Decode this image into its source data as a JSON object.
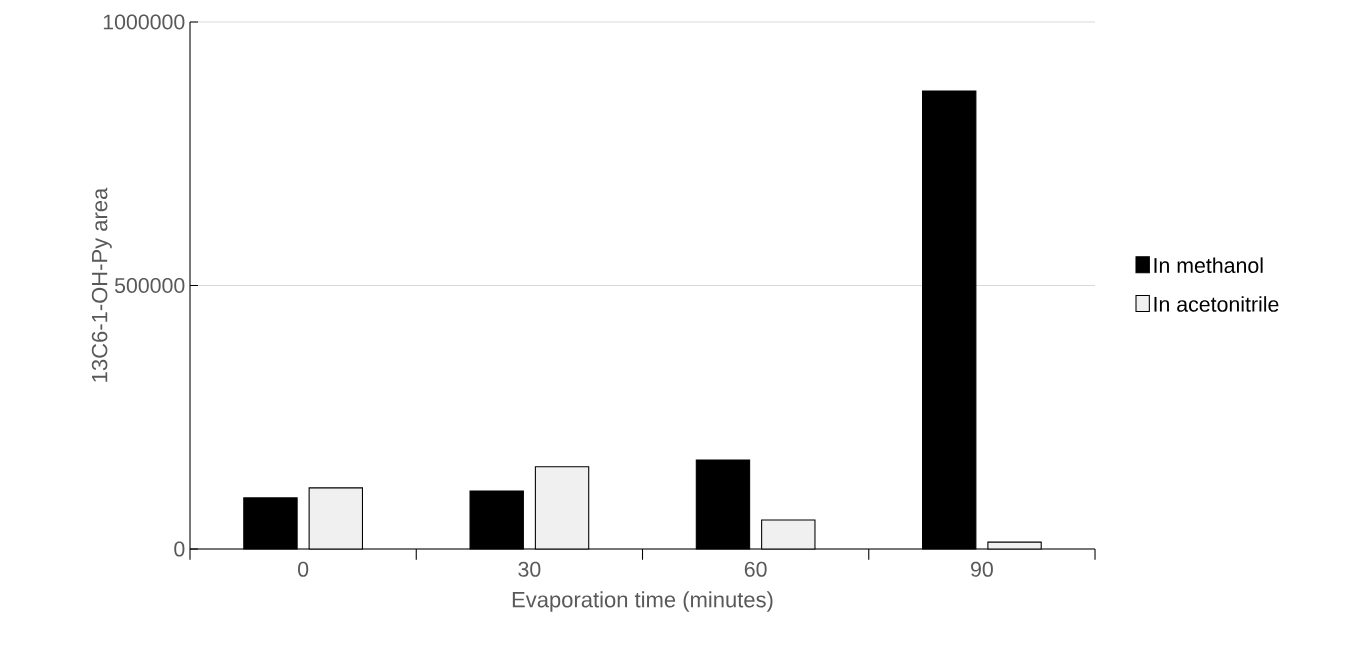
{
  "chart_data": {
    "type": "bar",
    "xlabel": "Evaporation time (minutes)",
    "ylabel": "13C6-1-OH-Py area",
    "categories": [
      "0",
      "30",
      "60",
      "90"
    ],
    "series": [
      {
        "name": "In methanol",
        "color": "#000000",
        "values": [
          97000,
          110000,
          169000,
          869000
        ]
      },
      {
        "name": "In acetonitrile",
        "color": "#f0f0f0",
        "values": [
          116000,
          156000,
          55000,
          13000
        ]
      }
    ],
    "ylim": [
      0,
      1000000
    ],
    "yticks": [
      0,
      500000,
      1000000
    ],
    "grid": "y",
    "legend": "right"
  }
}
